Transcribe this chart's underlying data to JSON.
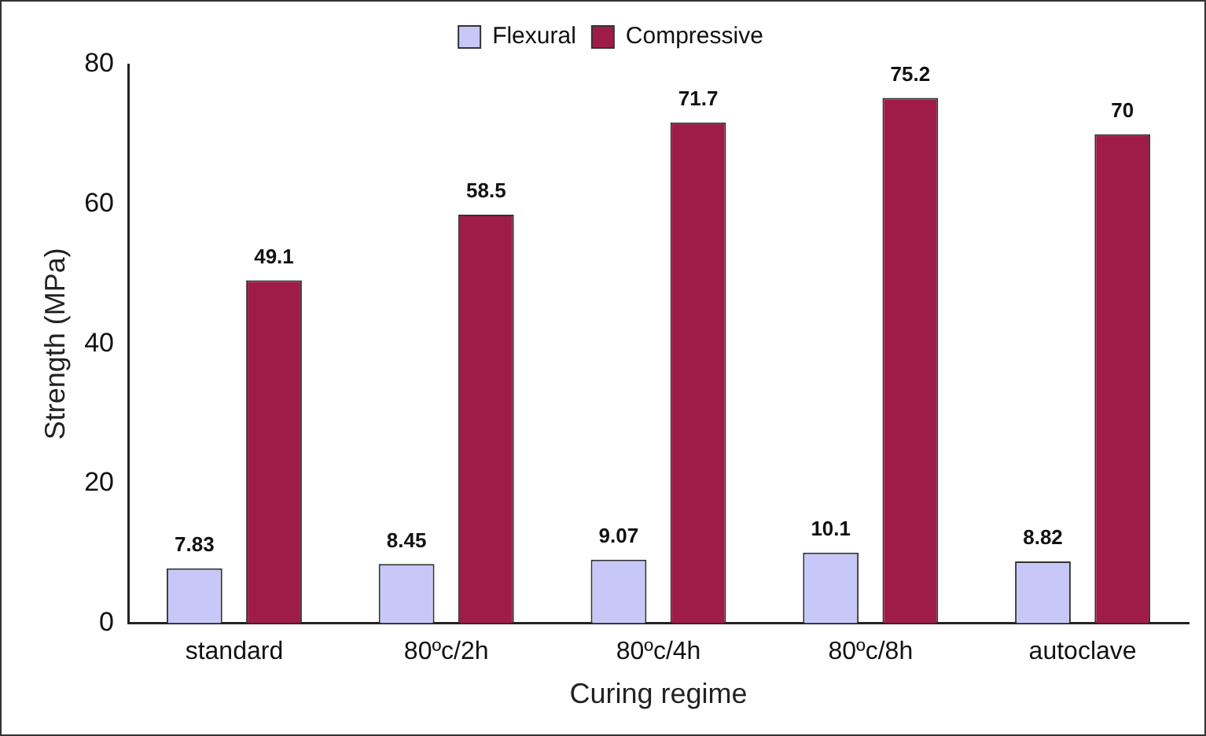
{
  "chart_data": {
    "type": "bar",
    "xlabel": "Curing regime",
    "ylabel": "Strength (MPa)",
    "categories": [
      "standard",
      "80ºc/2h",
      "80ºc/4h",
      "80ºc/8h",
      "autoclave"
    ],
    "series": [
      {
        "name": "Flexural",
        "color": "#c8c8f8",
        "values": [
          7.83,
          8.45,
          9.07,
          10.1,
          8.82
        ]
      },
      {
        "name": "Compressive",
        "color": "#a01c48",
        "values": [
          49.1,
          58.5,
          71.7,
          75.2,
          70
        ]
      }
    ],
    "ylim": [
      0,
      80
    ],
    "yticks": [
      0,
      20,
      40,
      60,
      80
    ],
    "grid": false,
    "legend": "top",
    "data_labels": true
  }
}
